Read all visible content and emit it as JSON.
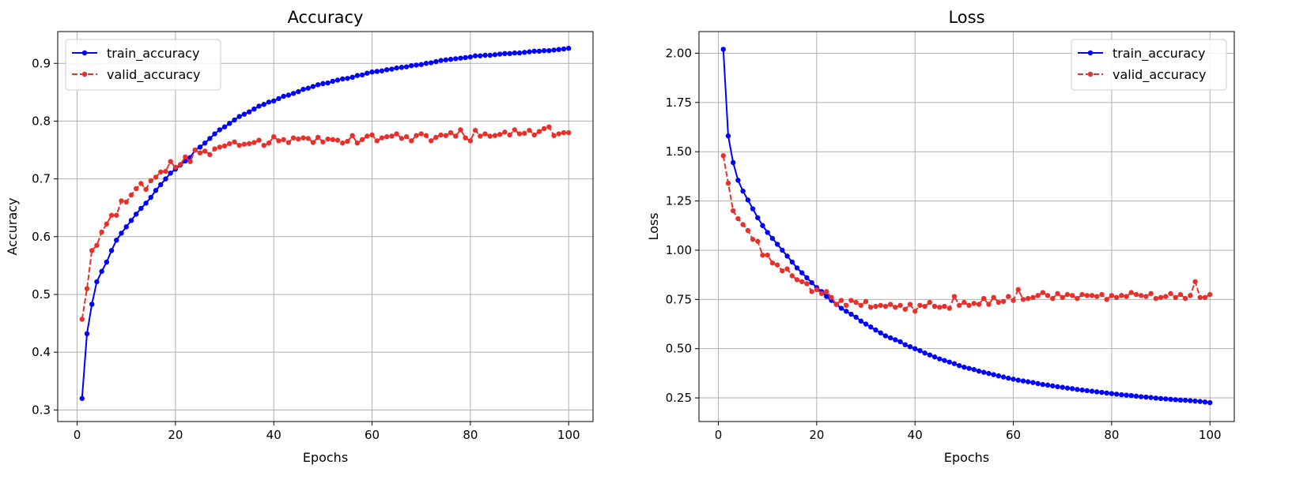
{
  "chart_data": [
    {
      "type": "line",
      "title": "Accuracy",
      "xlabel": "Epochs",
      "ylabel": "Accuracy",
      "xlim": [
        -3.95,
        104.95
      ],
      "ylim": [
        0.28,
        0.955
      ],
      "xticks": [
        0,
        20,
        40,
        60,
        80,
        100
      ],
      "xtick_labels": [
        "0",
        "20",
        "40",
        "60",
        "80",
        "100"
      ],
      "yticks": [
        0.3,
        0.4,
        0.5,
        0.6,
        0.7,
        0.8,
        0.9
      ],
      "ytick_labels": [
        "0.3",
        "0.4",
        "0.5",
        "0.6",
        "0.7",
        "0.8",
        "0.9"
      ],
      "grid": true,
      "legend_position": "top-left",
      "series": [
        {
          "name": "train_accuracy",
          "color": "#0000ff",
          "linestyle": "solid",
          "marker": "o",
          "x": [
            1,
            2,
            3,
            4,
            5,
            6,
            7,
            8,
            9,
            10,
            11,
            12,
            13,
            14,
            15,
            16,
            17,
            18,
            19,
            20,
            21,
            22,
            23,
            24,
            25,
            26,
            27,
            28,
            29,
            30,
            31,
            32,
            33,
            34,
            35,
            36,
            37,
            38,
            39,
            40,
            41,
            42,
            43,
            44,
            45,
            46,
            47,
            48,
            49,
            50,
            51,
            52,
            53,
            54,
            55,
            56,
            57,
            58,
            59,
            60,
            61,
            62,
            63,
            64,
            65,
            66,
            67,
            68,
            69,
            70,
            71,
            72,
            73,
            74,
            75,
            76,
            77,
            78,
            79,
            80,
            81,
            82,
            83,
            84,
            85,
            86,
            87,
            88,
            89,
            90,
            91,
            92,
            93,
            94,
            95,
            96,
            97,
            98,
            99,
            100
          ],
          "values": [
            0.32,
            0.432,
            0.483,
            0.522,
            0.54,
            0.556,
            0.576,
            0.594,
            0.606,
            0.617,
            0.628,
            0.639,
            0.649,
            0.658,
            0.668,
            0.68,
            0.69,
            0.7,
            0.71,
            0.717,
            0.724,
            0.731,
            0.737,
            0.75,
            0.755,
            0.762,
            0.77,
            0.778,
            0.785,
            0.79,
            0.796,
            0.802,
            0.808,
            0.812,
            0.816,
            0.821,
            0.826,
            0.829,
            0.833,
            0.835,
            0.839,
            0.843,
            0.845,
            0.848,
            0.851,
            0.855,
            0.857,
            0.86,
            0.863,
            0.865,
            0.866,
            0.869,
            0.871,
            0.873,
            0.874,
            0.876,
            0.879,
            0.88,
            0.883,
            0.885,
            0.886,
            0.887,
            0.889,
            0.89,
            0.892,
            0.893,
            0.894,
            0.896,
            0.897,
            0.898,
            0.9,
            0.901,
            0.903,
            0.905,
            0.906,
            0.907,
            0.908,
            0.909,
            0.91,
            0.911,
            0.913,
            0.913,
            0.914,
            0.914,
            0.915,
            0.916,
            0.917,
            0.917,
            0.918,
            0.918,
            0.919,
            0.92,
            0.921,
            0.921,
            0.922,
            0.922,
            0.923,
            0.924,
            0.925,
            0.926
          ]
        },
        {
          "name": "valid_accuracy",
          "color": "#e8302a",
          "linestyle": "dashed",
          "marker": "o",
          "x": [
            1,
            2,
            3,
            4,
            5,
            6,
            7,
            8,
            9,
            10,
            11,
            12,
            13,
            14,
            15,
            16,
            17,
            18,
            19,
            20,
            21,
            22,
            23,
            24,
            25,
            26,
            27,
            28,
            29,
            30,
            31,
            32,
            33,
            34,
            35,
            36,
            37,
            38,
            39,
            40,
            41,
            42,
            43,
            44,
            45,
            46,
            47,
            48,
            49,
            50,
            51,
            52,
            53,
            54,
            55,
            56,
            57,
            58,
            59,
            60,
            61,
            62,
            63,
            64,
            65,
            66,
            67,
            68,
            69,
            70,
            71,
            72,
            73,
            74,
            75,
            76,
            77,
            78,
            79,
            80,
            81,
            82,
            83,
            84,
            85,
            86,
            87,
            88,
            89,
            90,
            91,
            92,
            93,
            94,
            95,
            96,
            97,
            98,
            99,
            100
          ],
          "values": [
            0.457,
            0.51,
            0.576,
            0.585,
            0.608,
            0.622,
            0.637,
            0.637,
            0.662,
            0.66,
            0.672,
            0.683,
            0.692,
            0.682,
            0.697,
            0.703,
            0.712,
            0.713,
            0.73,
            0.72,
            0.725,
            0.738,
            0.73,
            0.75,
            0.745,
            0.748,
            0.742,
            0.752,
            0.755,
            0.757,
            0.761,
            0.764,
            0.758,
            0.76,
            0.761,
            0.763,
            0.767,
            0.758,
            0.762,
            0.773,
            0.766,
            0.768,
            0.763,
            0.771,
            0.769,
            0.771,
            0.77,
            0.763,
            0.772,
            0.764,
            0.769,
            0.768,
            0.767,
            0.762,
            0.765,
            0.775,
            0.762,
            0.768,
            0.774,
            0.776,
            0.766,
            0.771,
            0.773,
            0.774,
            0.778,
            0.77,
            0.773,
            0.766,
            0.775,
            0.778,
            0.775,
            0.766,
            0.772,
            0.776,
            0.775,
            0.78,
            0.774,
            0.785,
            0.771,
            0.766,
            0.784,
            0.774,
            0.778,
            0.774,
            0.775,
            0.777,
            0.781,
            0.776,
            0.785,
            0.778,
            0.779,
            0.784,
            0.776,
            0.782,
            0.787,
            0.79,
            0.775,
            0.778,
            0.78,
            0.78
          ]
        }
      ]
    },
    {
      "type": "line",
      "title": "Loss",
      "xlabel": "Epochs",
      "ylabel": "Loss",
      "xlim": [
        -3.95,
        104.95
      ],
      "ylim": [
        0.13,
        2.11
      ],
      "xticks": [
        0,
        20,
        40,
        60,
        80,
        100
      ],
      "xtick_labels": [
        "0",
        "20",
        "40",
        "60",
        "80",
        "100"
      ],
      "yticks": [
        0.25,
        0.5,
        0.75,
        1.0,
        1.25,
        1.5,
        1.75,
        2.0
      ],
      "ytick_labels": [
        "0.25",
        "0.50",
        "0.75",
        "1.00",
        "1.25",
        "1.50",
        "1.75",
        "2.00"
      ],
      "grid": true,
      "legend_position": "top-right",
      "series": [
        {
          "name": "train_accuracy",
          "color": "#0000ff",
          "linestyle": "solid",
          "marker": "o",
          "x": [
            1,
            2,
            3,
            4,
            5,
            6,
            7,
            8,
            9,
            10,
            11,
            12,
            13,
            14,
            15,
            16,
            17,
            18,
            19,
            20,
            21,
            22,
            23,
            24,
            25,
            26,
            27,
            28,
            29,
            30,
            31,
            32,
            33,
            34,
            35,
            36,
            37,
            38,
            39,
            40,
            41,
            42,
            43,
            44,
            45,
            46,
            47,
            48,
            49,
            50,
            51,
            52,
            53,
            54,
            55,
            56,
            57,
            58,
            59,
            60,
            61,
            62,
            63,
            64,
            65,
            66,
            67,
            68,
            69,
            70,
            71,
            72,
            73,
            74,
            75,
            76,
            77,
            78,
            79,
            80,
            81,
            82,
            83,
            84,
            85,
            86,
            87,
            88,
            89,
            90,
            91,
            92,
            93,
            94,
            95,
            96,
            97,
            98,
            99,
            100
          ],
          "values": [
            2.02,
            1.58,
            1.445,
            1.355,
            1.3,
            1.255,
            1.21,
            1.165,
            1.125,
            1.09,
            1.06,
            1.03,
            1.0,
            0.97,
            0.94,
            0.91,
            0.885,
            0.86,
            0.835,
            0.81,
            0.79,
            0.765,
            0.745,
            0.725,
            0.705,
            0.69,
            0.675,
            0.66,
            0.64,
            0.625,
            0.61,
            0.595,
            0.58,
            0.565,
            0.555,
            0.545,
            0.535,
            0.52,
            0.51,
            0.5,
            0.49,
            0.478,
            0.468,
            0.458,
            0.448,
            0.44,
            0.432,
            0.424,
            0.414,
            0.406,
            0.4,
            0.394,
            0.386,
            0.38,
            0.374,
            0.368,
            0.362,
            0.356,
            0.35,
            0.345,
            0.34,
            0.336,
            0.332,
            0.328,
            0.323,
            0.318,
            0.315,
            0.311,
            0.307,
            0.304,
            0.3,
            0.297,
            0.293,
            0.29,
            0.287,
            0.284,
            0.281,
            0.278,
            0.275,
            0.272,
            0.269,
            0.266,
            0.264,
            0.262,
            0.259,
            0.256,
            0.254,
            0.252,
            0.249,
            0.247,
            0.245,
            0.243,
            0.241,
            0.239,
            0.238,
            0.236,
            0.234,
            0.232,
            0.229,
            0.226
          ]
        },
        {
          "name": "valid_accuracy",
          "color": "#e8302a",
          "linestyle": "dashed",
          "marker": "o",
          "x": [
            1,
            2,
            3,
            4,
            5,
            6,
            7,
            8,
            9,
            10,
            11,
            12,
            13,
            14,
            15,
            16,
            17,
            18,
            19,
            20,
            21,
            22,
            23,
            24,
            25,
            26,
            27,
            28,
            29,
            30,
            31,
            32,
            33,
            34,
            35,
            36,
            37,
            38,
            39,
            40,
            41,
            42,
            43,
            44,
            45,
            46,
            47,
            48,
            49,
            50,
            51,
            52,
            53,
            54,
            55,
            56,
            57,
            58,
            59,
            60,
            61,
            62,
            63,
            64,
            65,
            66,
            67,
            68,
            69,
            70,
            71,
            72,
            73,
            74,
            75,
            76,
            77,
            78,
            79,
            80,
            81,
            82,
            83,
            84,
            85,
            86,
            87,
            88,
            89,
            90,
            91,
            92,
            93,
            94,
            95,
            96,
            97,
            98,
            99,
            100
          ],
          "values": [
            1.48,
            1.34,
            1.2,
            1.16,
            1.13,
            1.1,
            1.055,
            1.045,
            0.975,
            0.975,
            0.935,
            0.925,
            0.895,
            0.905,
            0.87,
            0.85,
            0.84,
            0.83,
            0.79,
            0.8,
            0.78,
            0.79,
            0.76,
            0.725,
            0.745,
            0.72,
            0.745,
            0.735,
            0.72,
            0.74,
            0.71,
            0.715,
            0.72,
            0.715,
            0.725,
            0.71,
            0.72,
            0.7,
            0.725,
            0.69,
            0.72,
            0.715,
            0.735,
            0.715,
            0.71,
            0.715,
            0.705,
            0.765,
            0.72,
            0.735,
            0.72,
            0.73,
            0.725,
            0.755,
            0.725,
            0.76,
            0.735,
            0.74,
            0.765,
            0.745,
            0.8,
            0.75,
            0.755,
            0.76,
            0.77,
            0.785,
            0.77,
            0.755,
            0.78,
            0.76,
            0.775,
            0.77,
            0.755,
            0.775,
            0.77,
            0.77,
            0.765,
            0.775,
            0.75,
            0.77,
            0.76,
            0.77,
            0.765,
            0.785,
            0.775,
            0.77,
            0.765,
            0.78,
            0.755,
            0.76,
            0.765,
            0.78,
            0.76,
            0.775,
            0.755,
            0.77,
            0.84,
            0.76,
            0.76,
            0.775
          ]
        }
      ]
    }
  ]
}
